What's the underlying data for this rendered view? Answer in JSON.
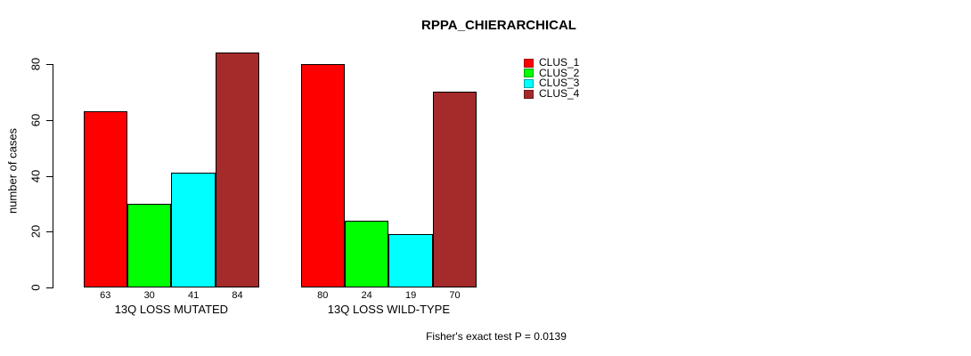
{
  "chart_data": {
    "type": "bar",
    "title": "RPPA_CHIERARCHICAL",
    "ylabel": "number of cases",
    "xlabel": "",
    "ylim": [
      0,
      80
    ],
    "yticks": [
      0,
      20,
      40,
      60,
      80
    ],
    "grid": false,
    "legend_position": "top-right",
    "categories": [
      "13Q LOSS MUTATED",
      "13Q LOSS WILD-TYPE"
    ],
    "series": [
      {
        "name": "CLUS_1",
        "color": "#ff0000",
        "values": [
          63,
          80
        ]
      },
      {
        "name": "CLUS_2",
        "color": "#00ff00",
        "values": [
          30,
          24
        ]
      },
      {
        "name": "CLUS_3",
        "color": "#00ffff",
        "values": [
          41,
          19
        ]
      },
      {
        "name": "CLUS_4",
        "color": "#a52a2a",
        "values": [
          84,
          70
        ]
      }
    ],
    "bar_value_labels": [
      [
        63,
        30,
        41,
        84
      ],
      [
        80,
        24,
        19,
        70
      ]
    ],
    "annotation": "Fisher's exact test P = 0.0139"
  }
}
